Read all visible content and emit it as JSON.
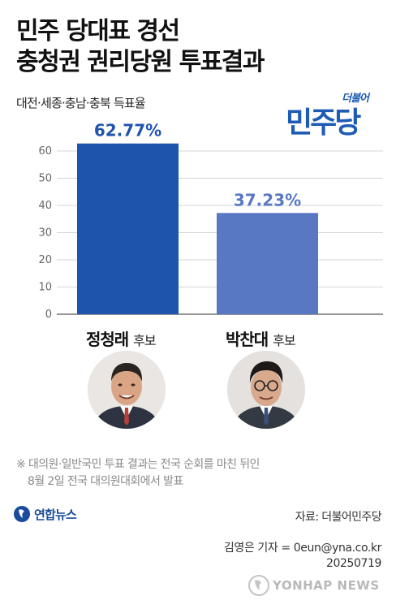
{
  "header": {
    "title_line1": "민주 당대표 경선",
    "title_line2": "충청권 권리당원 투표결과",
    "subtitle": "대전·세종·충남·충북 득표율"
  },
  "logo": {
    "small": "더불어",
    "big": "민주당"
  },
  "colors": {
    "bar_primary": "#1f54ad",
    "bar_secondary": "#5878c4",
    "grid": "#d6d6d6"
  },
  "chart_data": {
    "type": "bar",
    "categories": [
      "정청래",
      "박찬대"
    ],
    "values": [
      62.77,
      37.23
    ],
    "data_labels": [
      "62.77%",
      "37.23%"
    ],
    "ylim": [
      0,
      60
    ],
    "yticks": [
      0,
      10,
      20,
      30,
      40,
      50,
      60
    ],
    "grid": true
  },
  "candidates": [
    {
      "name": "정청래",
      "suffix": "후보",
      "photo_icon": "person-photo"
    },
    {
      "name": "박찬대",
      "suffix": "후보",
      "photo_icon": "person-photo"
    }
  ],
  "note": {
    "line1": "※ 대의원·일반국민 투표 결과는 전국 순회를 마친 뒤인",
    "line2": "8월 2일 전국 대의원대회에서 발표"
  },
  "agency": {
    "name": "연합뉴스"
  },
  "source": "자료: 더불어민주당",
  "credit": {
    "reporter": "김영은 기자 = 0eun@yna.co.kr",
    "date": "20250719"
  },
  "watermark": "YONHAP NEWS"
}
